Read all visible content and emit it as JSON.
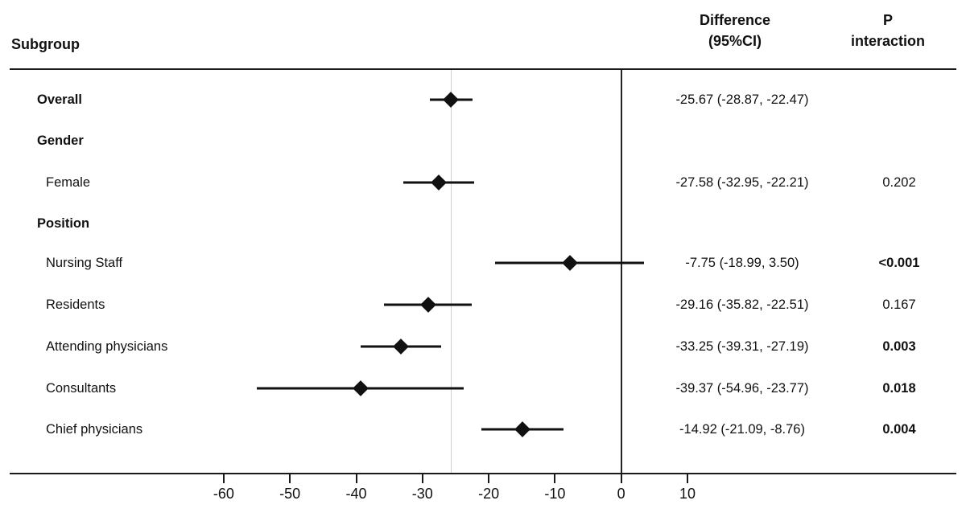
{
  "columns": {
    "subgroup": "Subgroup",
    "difference_line1": "Difference",
    "difference_line2": "(95%CI)",
    "p_line1": "P",
    "p_line2": "interaction"
  },
  "chart_data": {
    "type": "forest",
    "title": "",
    "xlabel": "",
    "x_ticks": [
      -60,
      -50,
      -40,
      -30,
      -20,
      -10,
      0,
      10
    ],
    "xlim": [
      -68,
      15
    ],
    "zero_line": 0,
    "reference_line": -25.67,
    "grid": false,
    "rows": [
      {
        "label": "Overall",
        "bold": true,
        "indent": false,
        "est": -25.67,
        "lo": -28.87,
        "hi": -22.47,
        "diff_text": "-25.67 (-28.87, -22.47)",
        "p": "",
        "p_bold": false
      },
      {
        "label": "Gender",
        "bold": true,
        "indent": false,
        "est": null,
        "lo": null,
        "hi": null,
        "diff_text": "",
        "p": "",
        "p_bold": false
      },
      {
        "label": "Female",
        "bold": false,
        "indent": true,
        "est": -27.58,
        "lo": -32.95,
        "hi": -22.21,
        "diff_text": "-27.58 (-32.95, -22.21)",
        "p": "0.202",
        "p_bold": false
      },
      {
        "label": "Position",
        "bold": true,
        "indent": false,
        "est": null,
        "lo": null,
        "hi": null,
        "diff_text": "",
        "p": "",
        "p_bold": false
      },
      {
        "label": "Nursing Staff",
        "bold": false,
        "indent": true,
        "est": -7.75,
        "lo": -18.99,
        "hi": 3.5,
        "diff_text": "-7.75 (-18.99, 3.50)",
        "p": "<0.001",
        "p_bold": true
      },
      {
        "label": "Residents",
        "bold": false,
        "indent": true,
        "est": -29.16,
        "lo": -35.82,
        "hi": -22.51,
        "diff_text": "-29.16 (-35.82, -22.51)",
        "p": "0.167",
        "p_bold": false
      },
      {
        "label": "Attending physicians",
        "bold": false,
        "indent": true,
        "est": -33.25,
        "lo": -39.31,
        "hi": -27.19,
        "diff_text": "-33.25 (-39.31, -27.19)",
        "p": "0.003",
        "p_bold": true
      },
      {
        "label": "Consultants",
        "bold": false,
        "indent": true,
        "est": -39.37,
        "lo": -54.96,
        "hi": -23.77,
        "diff_text": "-39.37 (-54.96, -23.77)",
        "p": "0.018",
        "p_bold": true
      },
      {
        "label": "Chief physicians",
        "bold": false,
        "indent": true,
        "est": -14.92,
        "lo": -21.09,
        "hi": -8.76,
        "diff_text": "-14.92 (-21.09, -8.76)",
        "p": "0.004",
        "p_bold": true
      }
    ]
  },
  "colors": {
    "marker": "#111111",
    "zero_line": "#222222",
    "reference_line": "#cfcfcf",
    "rule": "#1a1a1a",
    "text": "#111111"
  }
}
